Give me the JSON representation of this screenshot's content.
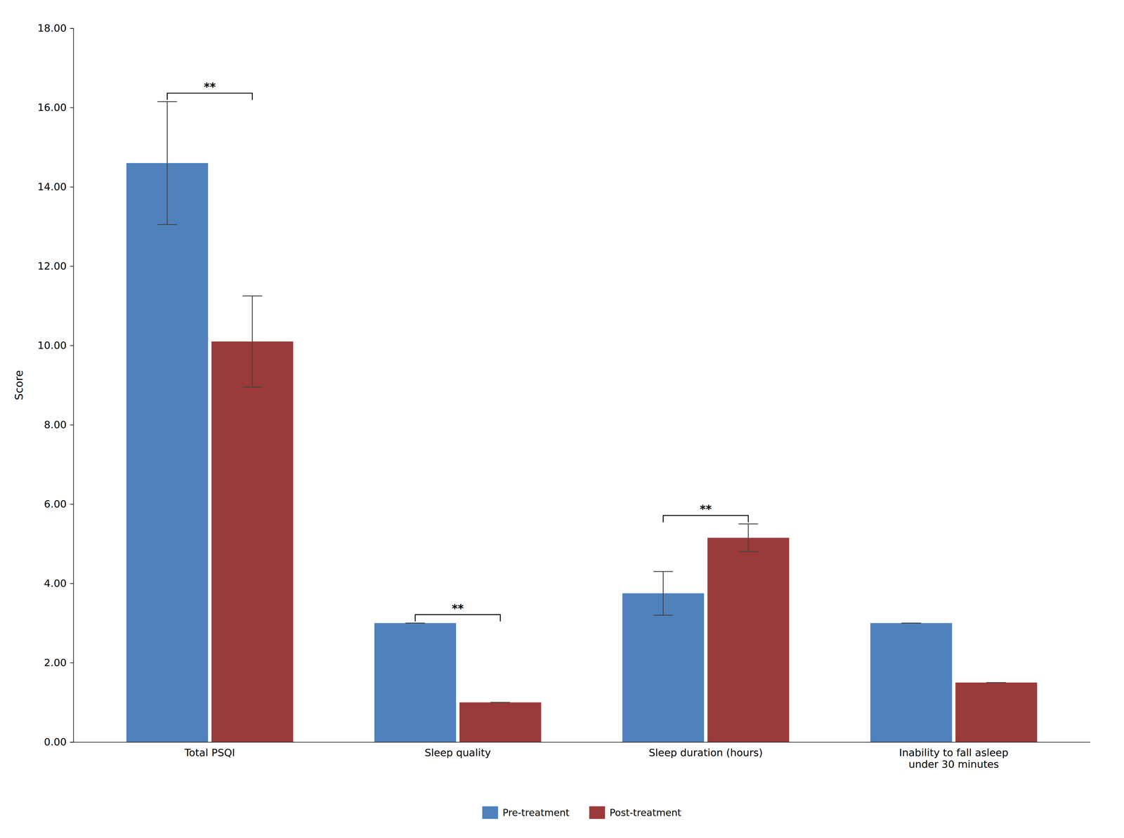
{
  "chart_data": {
    "type": "bar",
    "categories": [
      "Total PSQI",
      "Sleep quality",
      "Sleep duration (hours)",
      "Inability to fall asleep\nunder 30 minutes"
    ],
    "series": [
      {
        "name": "Pre-treatment",
        "color": "#4F81BD",
        "values": [
          14.6,
          3.0,
          3.75,
          3.0
        ],
        "errors": [
          1.55,
          0.0,
          0.55,
          0.0
        ]
      },
      {
        "name": "Post-treatment",
        "color": "#9B3A3A",
        "values": [
          10.1,
          1.0,
          5.15,
          1.5
        ],
        "errors": [
          1.15,
          0.0,
          0.35,
          0.0
        ]
      }
    ],
    "ylabel": "Score",
    "ylim": [
      0,
      18.0
    ],
    "yticks": [
      {
        "value": 0.0,
        "label": "0.00"
      },
      {
        "value": 2.0,
        "label": "2.00"
      },
      {
        "value": 4.0,
        "label": "4.00"
      },
      {
        "value": 6.0,
        "label": "6.00"
      },
      {
        "value": 8.0,
        "label": "8.00"
      },
      {
        "value": 10.0,
        "label": "10.00"
      },
      {
        "value": 12.0,
        "label": "12.00"
      },
      {
        "value": 14.0,
        "label": "14.00"
      },
      {
        "value": 16.0,
        "label": "16.00"
      },
      {
        "value": 18.0,
        "label": "18.00"
      }
    ],
    "annotations": [
      {
        "text": "**",
        "category": "Total PSQI"
      },
      {
        "text": "**",
        "category": "Sleep quality"
      },
      {
        "text": "**",
        "category": "Sleep duration (hours)"
      }
    ],
    "grid": false,
    "legend": "bottom"
  }
}
